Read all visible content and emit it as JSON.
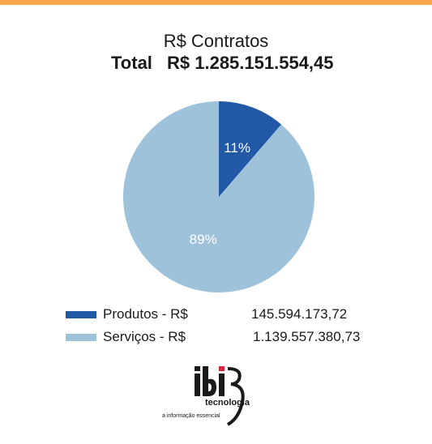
{
  "chart_data": {
    "type": "pie",
    "title": "R$ Contratos",
    "total_label": "Total",
    "total_value": "R$ 1.285.151.554,45",
    "slices": [
      {
        "name": "Produtos - R$",
        "value": 145594173.72,
        "value_text": "145.594.173,72",
        "percent_label": "11%",
        "color": "#2159a7"
      },
      {
        "name": "Serviços - R$",
        "value": 1139557380.73,
        "value_text": "1.139.557.380,73",
        "percent_label": "89%",
        "color": "#9fc2db"
      }
    ]
  },
  "colors": {
    "top_bar": "#f5a94a",
    "logo_dark": "#1a1a1a",
    "logo_red": "#d7263d"
  },
  "logo": {
    "name": "ibi",
    "subtitle": "tecnologia",
    "tagline": "a informação essencial"
  }
}
